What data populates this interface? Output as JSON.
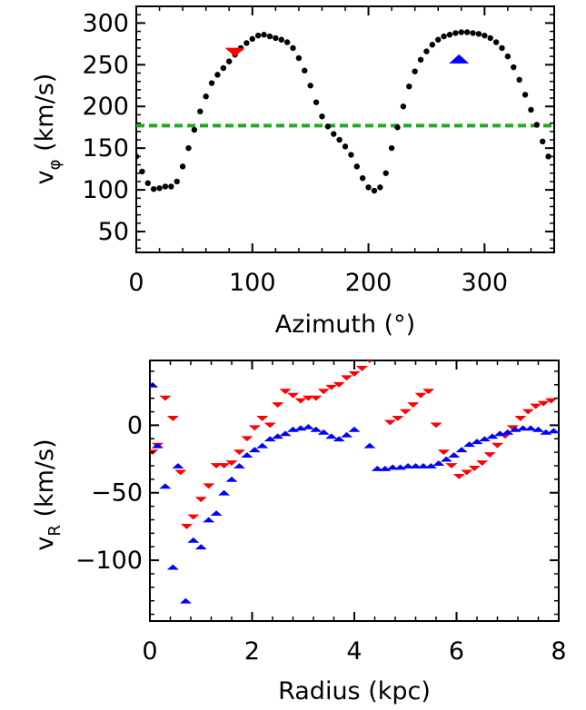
{
  "chart_data": [
    {
      "type": "scatter",
      "xlabel": "Azimuth (°)",
      "ylabel": "v",
      "ylabel_sub": "φ",
      "ylabel_unit": " (km/s)",
      "xlim": [
        0,
        360
      ],
      "ylim": [
        25,
        320
      ],
      "xticks": [
        0,
        100,
        200,
        300
      ],
      "yticks": [
        50,
        100,
        150,
        200,
        250,
        300
      ],
      "xtick_labels": [
        "0",
        "100",
        "200",
        "300"
      ],
      "ytick_labels": [
        "50",
        "100",
        "150",
        "200",
        "250",
        "300"
      ],
      "grid": false,
      "reference_line": {
        "y": 177,
        "color": "#22aa22",
        "style": "dashed"
      },
      "series": [
        {
          "marker": "dot",
          "color": "#000000",
          "x": [
            0,
            5,
            10,
            15,
            20,
            25,
            30,
            35,
            40,
            45,
            50,
            55,
            60,
            65,
            70,
            75,
            80,
            85,
            90,
            95,
            100,
            105,
            110,
            115,
            120,
            125,
            130,
            135,
            140,
            145,
            150,
            155,
            160,
            165,
            170,
            175,
            180,
            185,
            190,
            195,
            200,
            205,
            210,
            215,
            220,
            225,
            230,
            235,
            240,
            245,
            250,
            255,
            260,
            265,
            270,
            275,
            280,
            285,
            290,
            295,
            300,
            305,
            310,
            315,
            320,
            325,
            330,
            335,
            340,
            345,
            350,
            355
          ],
          "y": [
            140,
            122,
            108,
            101,
            102,
            104,
            104,
            110,
            128,
            150,
            172,
            194,
            212,
            228,
            238,
            246,
            254,
            262,
            270,
            276,
            281,
            285,
            286,
            284,
            282,
            280,
            277,
            270,
            258,
            243,
            225,
            205,
            188,
            176,
            167,
            160,
            152,
            142,
            128,
            114,
            103,
            99,
            103,
            120,
            150,
            175,
            200,
            224,
            242,
            256,
            266,
            274,
            280,
            284,
            286,
            288,
            289,
            289,
            288,
            287,
            285,
            282,
            277,
            270,
            260,
            247,
            232,
            214,
            196,
            178,
            158,
            140
          ]
        }
      ],
      "markers": [
        {
          "shape": "triangle-down",
          "color": "#ff0000",
          "x": 85,
          "y": 265
        },
        {
          "shape": "triangle-up",
          "color": "#0000ff",
          "x": 278,
          "y": 257
        }
      ]
    },
    {
      "type": "scatter",
      "xlabel": "Radius (kpc)",
      "ylabel": "v",
      "ylabel_sub": "R",
      "ylabel_unit": " (km/s)",
      "xlim": [
        0,
        8
      ],
      "ylim": [
        -145,
        48
      ],
      "xticks": [
        0,
        2,
        4,
        6,
        8
      ],
      "yticks": [
        -100,
        -50,
        0
      ],
      "xtick_labels": [
        "0",
        "2",
        "4",
        "6",
        "8"
      ],
      "ytick_labels": [
        "−100",
        "−50",
        "0"
      ],
      "grid": false,
      "series": [
        {
          "marker": "triangle-down",
          "color": "#ff0000",
          "x": [
            0.05,
            0.15,
            0.3,
            0.45,
            0.6,
            0.72,
            0.85,
            1.0,
            1.15,
            1.3,
            1.45,
            1.6,
            1.75,
            1.9,
            2.05,
            2.2,
            2.35,
            2.5,
            2.65,
            2.8,
            2.95,
            3.1,
            3.25,
            3.4,
            3.55,
            3.7,
            3.85,
            4.0,
            4.15,
            4.3,
            4.7,
            4.85,
            5.0,
            5.15,
            5.3,
            5.45,
            5.6,
            5.75,
            5.9,
            6.05,
            6.2,
            6.35,
            6.5,
            6.65,
            6.8,
            6.95,
            7.1,
            7.25,
            7.4,
            7.55,
            7.7,
            7.85
          ],
          "y": [
            -20,
            -15,
            20,
            5,
            -35,
            -75,
            -68,
            -55,
            -45,
            -30,
            -30,
            -28,
            -20,
            -10,
            -2,
            5,
            0,
            15,
            25,
            22,
            18,
            20,
            20,
            25,
            28,
            30,
            35,
            38,
            42,
            48,
            2,
            5,
            10,
            15,
            22,
            25,
            0,
            -20,
            -30,
            -38,
            -35,
            -32,
            -28,
            -22,
            -15,
            -8,
            -2,
            5,
            10,
            14,
            16,
            18
          ]
        },
        {
          "marker": "triangle-up",
          "color": "#0000ff",
          "x": [
            0.05,
            0.15,
            0.3,
            0.45,
            0.55,
            0.7,
            0.85,
            1.0,
            1.15,
            1.3,
            1.45,
            1.6,
            1.75,
            1.9,
            2.05,
            2.2,
            2.35,
            2.5,
            2.65,
            2.8,
            2.95,
            3.1,
            3.25,
            3.4,
            3.55,
            3.7,
            3.85,
            4.0,
            4.3,
            4.45,
            4.6,
            4.75,
            4.9,
            5.05,
            5.2,
            5.35,
            5.5,
            5.65,
            5.8,
            5.95,
            6.1,
            6.25,
            6.4,
            6.55,
            6.7,
            6.85,
            7.0,
            7.15,
            7.3,
            7.45,
            7.6,
            7.75,
            7.9
          ],
          "y": [
            30,
            -15,
            -45,
            -105,
            -30,
            -130,
            -85,
            -90,
            -70,
            -65,
            -50,
            -40,
            -30,
            -22,
            -18,
            -15,
            -10,
            -8,
            -6,
            -3,
            -2,
            -1,
            -3,
            -5,
            -8,
            -10,
            -7,
            -3,
            -15,
            -32,
            -32,
            -31,
            -31,
            -30,
            -30,
            -30,
            -30,
            -28,
            -25,
            -22,
            -18,
            -14,
            -12,
            -10,
            -8,
            -6,
            -5,
            -3,
            -2,
            -2,
            -3,
            -5,
            -4
          ]
        }
      ]
    }
  ]
}
